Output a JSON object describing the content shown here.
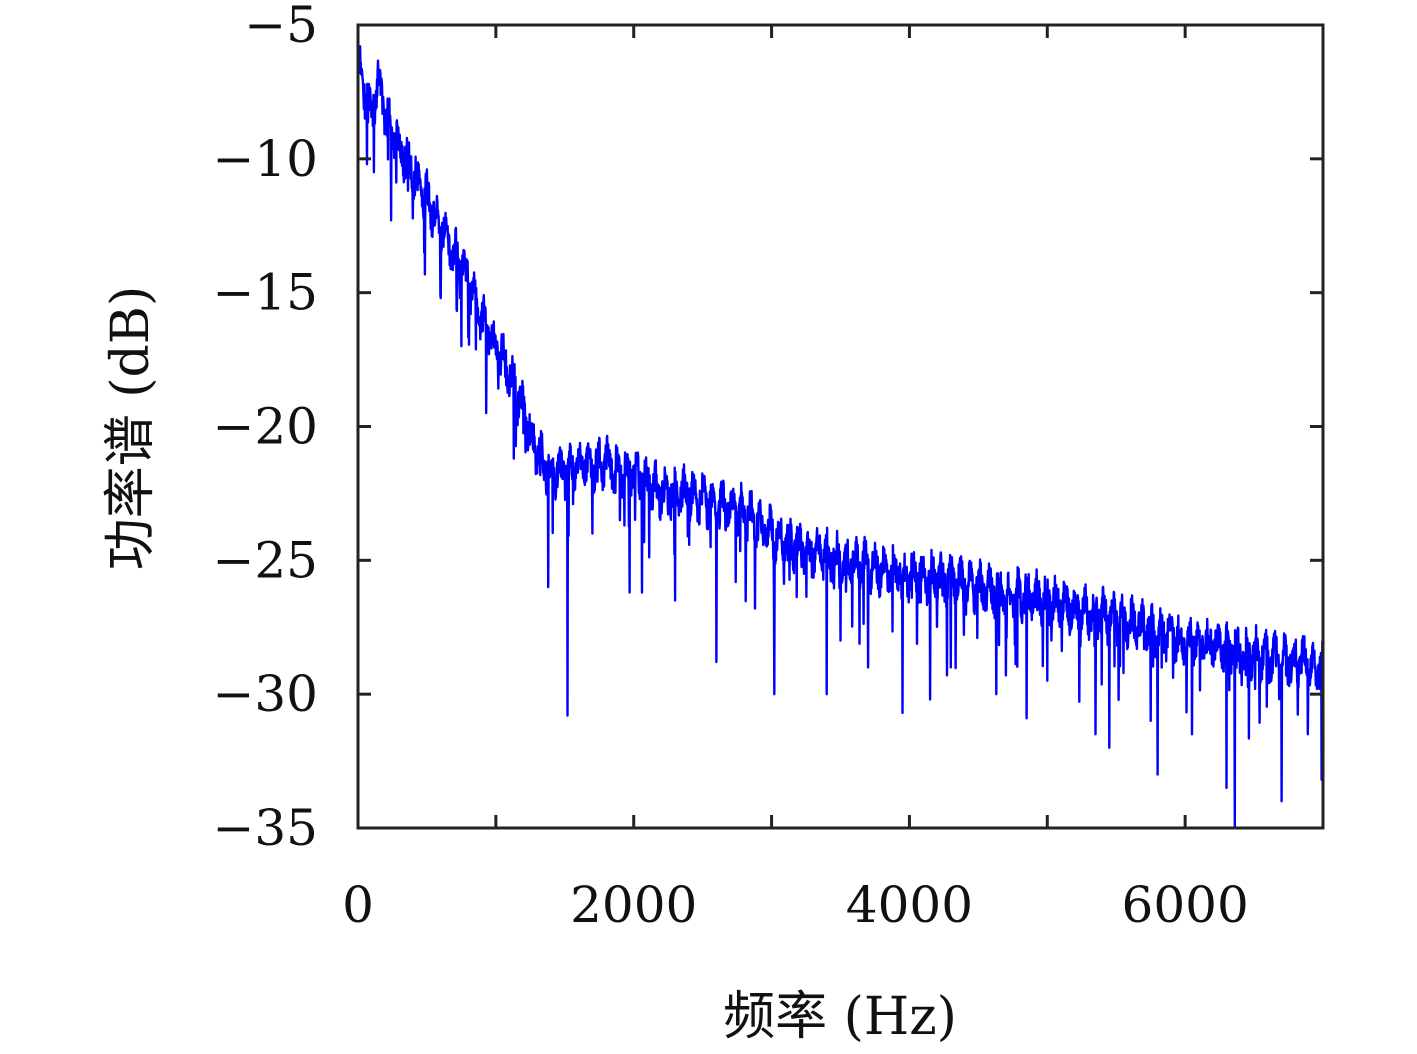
{
  "chart_data": {
    "type": "line",
    "title": "",
    "xlabel": "频率 (Hz)",
    "ylabel": "功率谱 (dB)",
    "xlim": [
      0,
      7000
    ],
    "ylim": [
      -35,
      -5
    ],
    "xticks": [
      0,
      2000,
      4000,
      6000
    ],
    "xtick_labels": [
      "0",
      "2000",
      "4000",
      "6000"
    ],
    "yticks": [
      -35,
      -30,
      -25,
      -20,
      -15,
      -10,
      -5
    ],
    "ytick_labels": [
      "−35",
      "−30",
      "−25",
      "−20",
      "−15",
      "−10",
      "−5"
    ],
    "grid": false,
    "legend": "none",
    "line_color": "#0000ff",
    "axis_color": "#222222",
    "series": [
      {
        "envelope_x": [
          0,
          50,
          100,
          150,
          200,
          300,
          400,
          500,
          600,
          700,
          800,
          900,
          1000,
          1100,
          1200,
          1300,
          1400,
          1600,
          1800,
          2000,
          2200,
          2400,
          2600,
          2800,
          3000,
          3200,
          3500,
          4000,
          4500,
          5000,
          5500,
          6000,
          6500,
          7000
        ],
        "envelope_y": [
          -6.5,
          -7.5,
          -8.2,
          -7.0,
          -8.5,
          -9.5,
          -10.5,
          -11.5,
          -12.5,
          -13.5,
          -14.5,
          -16.0,
          -17.0,
          -18.0,
          -19.5,
          -21.0,
          -21.8,
          -21.5,
          -21.3,
          -21.8,
          -22.5,
          -22.5,
          -23.0,
          -23.2,
          -24.0,
          -24.5,
          -25.0,
          -25.5,
          -26.0,
          -26.5,
          -27.2,
          -28.0,
          -28.5,
          -29.0
        ],
        "ripple_db": 1.3,
        "dips": [
          {
            "x": 65,
            "y": -10.2
          },
          {
            "x": 115,
            "y": -10.5
          },
          {
            "x": 240,
            "y": -12.3
          },
          {
            "x": 480,
            "y": -13.5
          },
          {
            "x": 600,
            "y": -15.2
          },
          {
            "x": 740,
            "y": -15.2
          },
          {
            "x": 750,
            "y": -17.0
          },
          {
            "x": 930,
            "y": -19.5
          },
          {
            "x": 1130,
            "y": -21.2
          },
          {
            "x": 1380,
            "y": -26.0
          },
          {
            "x": 1520,
            "y": -30.8
          },
          {
            "x": 1700,
            "y": -24.0
          },
          {
            "x": 1900,
            "y": -23.5
          },
          {
            "x": 1970,
            "y": -26.2
          },
          {
            "x": 2060,
            "y": -26.2
          },
          {
            "x": 2300,
            "y": -26.5
          },
          {
            "x": 2600,
            "y": -28.8
          },
          {
            "x": 2880,
            "y": -26.8
          },
          {
            "x": 3020,
            "y": -30.0
          },
          {
            "x": 3400,
            "y": -30.0
          },
          {
            "x": 3500,
            "y": -28.0
          },
          {
            "x": 3700,
            "y": -29.0
          },
          {
            "x": 3950,
            "y": -30.7
          },
          {
            "x": 4150,
            "y": -30.2
          },
          {
            "x": 4300,
            "y": -29.0
          },
          {
            "x": 4630,
            "y": -30.0
          },
          {
            "x": 4700,
            "y": -29.3
          },
          {
            "x": 4850,
            "y": -30.9
          },
          {
            "x": 5000,
            "y": -29.5
          },
          {
            "x": 5350,
            "y": -31.5
          },
          {
            "x": 5450,
            "y": -32.0
          },
          {
            "x": 5750,
            "y": -31.0
          },
          {
            "x": 5800,
            "y": -33.0
          },
          {
            "x": 6050,
            "y": -31.5
          },
          {
            "x": 6300,
            "y": -33.5
          },
          {
            "x": 6360,
            "y": -35.0
          },
          {
            "x": 6700,
            "y": -34.0
          },
          {
            "x": 6890,
            "y": -31.5
          },
          {
            "x": 6990,
            "y": -33.2
          }
        ]
      }
    ]
  }
}
